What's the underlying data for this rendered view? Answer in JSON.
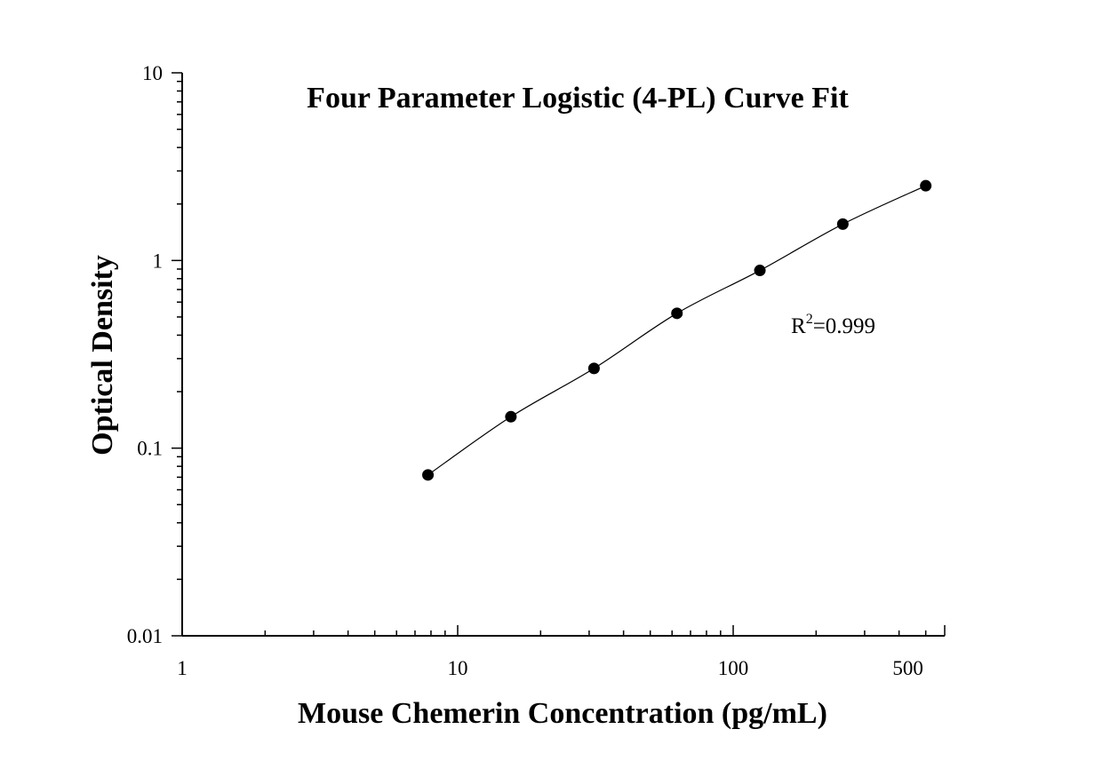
{
  "chart_data": {
    "type": "scatter",
    "title": "Four Parameter Logistic (4-PL) Curve Fit",
    "xlabel": "Mouse Chemerin Concentration (pg/mL)",
    "ylabel": "Optical Density",
    "x_scale": "log",
    "y_scale": "log",
    "xlim": [
      1,
      500
    ],
    "ylim": [
      0.01,
      10
    ],
    "x_ticks": [
      {
        "value": 1,
        "label": "1"
      },
      {
        "value": 10,
        "label": "10"
      },
      {
        "value": 100,
        "label": "100"
      },
      {
        "value": 500,
        "label": "500"
      }
    ],
    "y_ticks": [
      {
        "value": 0.01,
        "label": "0.01"
      },
      {
        "value": 0.1,
        "label": "0.1"
      },
      {
        "value": 1,
        "label": "1"
      },
      {
        "value": 10,
        "label": "10"
      }
    ],
    "grid": false,
    "legend": "none",
    "series": [
      {
        "x": [
          7.8,
          15.6,
          31.25,
          62.5,
          125,
          250,
          500
        ],
        "y": [
          0.072,
          0.147,
          0.266,
          0.523,
          0.885,
          1.562,
          2.502
        ]
      }
    ],
    "fit_curve": true,
    "annotation": {
      "base": "R",
      "superscript": "2",
      "rest": "=0.999"
    },
    "colors": {
      "marker": "#000000",
      "line": "#000000",
      "axis": "#000000"
    }
  }
}
